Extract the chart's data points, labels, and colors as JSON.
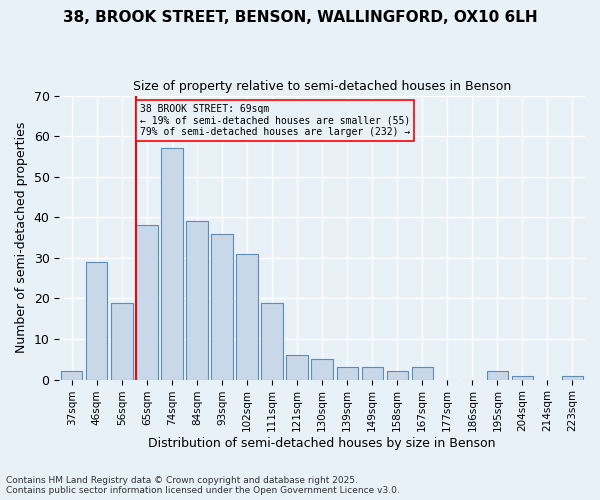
{
  "title_line1": "38, BROOK STREET, BENSON, WALLINGFORD, OX10 6LH",
  "title_line2": "Size of property relative to semi-detached houses in Benson",
  "xlabel": "Distribution of semi-detached houses by size in Benson",
  "ylabel": "Number of semi-detached properties",
  "categories": [
    "37sqm",
    "46sqm",
    "56sqm",
    "65sqm",
    "74sqm",
    "84sqm",
    "93sqm",
    "102sqm",
    "111sqm",
    "121sqm",
    "130sqm",
    "139sqm",
    "149sqm",
    "158sqm",
    "167sqm",
    "177sqm",
    "186sqm",
    "195sqm",
    "204sqm",
    "214sqm",
    "223sqm"
  ],
  "values": [
    2,
    29,
    19,
    38,
    57,
    39,
    36,
    31,
    19,
    6,
    5,
    3,
    3,
    2,
    3,
    0,
    0,
    2,
    1,
    0,
    1
  ],
  "bar_color": "#c8d8e8",
  "bar_edge_color": "#5b8db8",
  "background_color": "#e8f0f8",
  "grid_color": "#ffffff",
  "vline_bin_index": 3,
  "annotation_text_line1": "38 BROOK STREET: 69sqm",
  "annotation_text_line2": "← 19% of semi-detached houses are smaller (55)",
  "annotation_text_line3": "79% of semi-detached houses are larger (232) →",
  "ylim": [
    0,
    70
  ],
  "yticks": [
    0,
    10,
    20,
    30,
    40,
    50,
    60,
    70
  ],
  "footnote_line1": "Contains HM Land Registry data © Crown copyright and database right 2025.",
  "footnote_line2": "Contains public sector information licensed under the Open Government Licence v3.0."
}
